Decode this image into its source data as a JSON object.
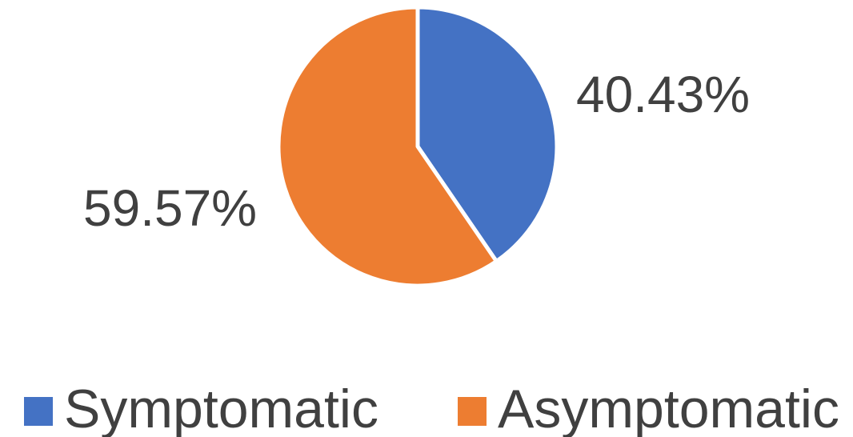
{
  "chart_data": {
    "type": "pie",
    "title": "",
    "start_angle_deg": 0,
    "direction": "clockwise",
    "slices": [
      {
        "name": "Symptomatic",
        "value": 40.43,
        "label": "40.43%",
        "color": "#4472C4"
      },
      {
        "name": "Asymptomatic",
        "value": 59.57,
        "label": "59.57%",
        "color": "#ED7D31"
      }
    ],
    "legend": {
      "position": "bottom",
      "entries": [
        "Symptomatic",
        "Asymptomatic"
      ]
    },
    "label_color": "#404040",
    "slice_separator_color": "#FFFFFF"
  }
}
